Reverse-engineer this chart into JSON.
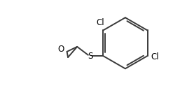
{
  "bg_color": "#ffffff",
  "line_color": "#3a3a3a",
  "text_color": "#000000",
  "line_width": 1.4,
  "font_size": 8.5,
  "figsize": [
    2.67,
    1.26
  ],
  "dpi": 100,
  "xlim": [
    0,
    10
  ],
  "ylim": [
    0,
    5
  ],
  "bx": 6.8,
  "by": 2.55,
  "r": 1.45
}
